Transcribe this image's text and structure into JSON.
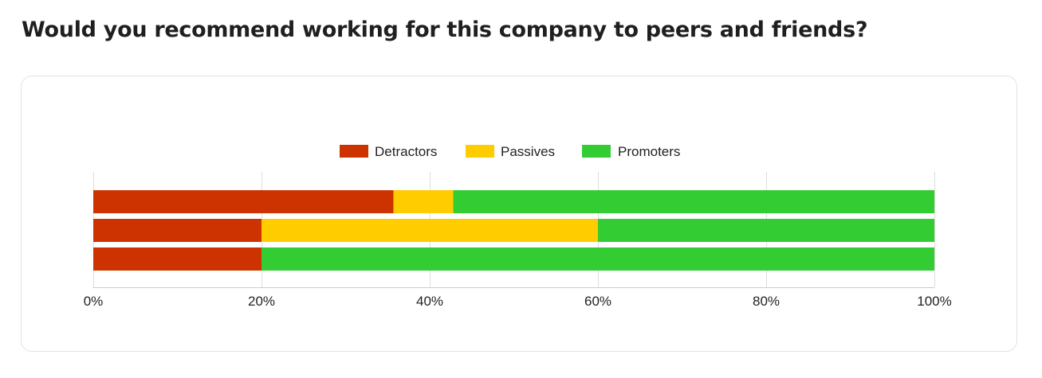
{
  "page": {
    "title": "Would you recommend working for this company to peers and friends?"
  },
  "chart_data": {
    "type": "bar",
    "orientation": "horizontal",
    "stacked": true,
    "categories": [
      "",
      "",
      ""
    ],
    "series": [
      {
        "name": "Detractors",
        "color": "#cc3300",
        "values": [
          35.7,
          20,
          20
        ]
      },
      {
        "name": "Passives",
        "color": "#ffcc00",
        "values": [
          7.1,
          40,
          0
        ]
      },
      {
        "name": "Promoters",
        "color": "#33cc33",
        "values": [
          57.2,
          40,
          80
        ]
      }
    ],
    "xlim": [
      0,
      100
    ],
    "xticks": [
      "0%",
      "20%",
      "40%",
      "60%",
      "80%",
      "100%"
    ],
    "xtick_values": [
      0,
      20,
      40,
      60,
      80,
      100
    ],
    "grid": true,
    "legend": "top-center",
    "title": "",
    "xlabel": "",
    "ylabel": ""
  }
}
